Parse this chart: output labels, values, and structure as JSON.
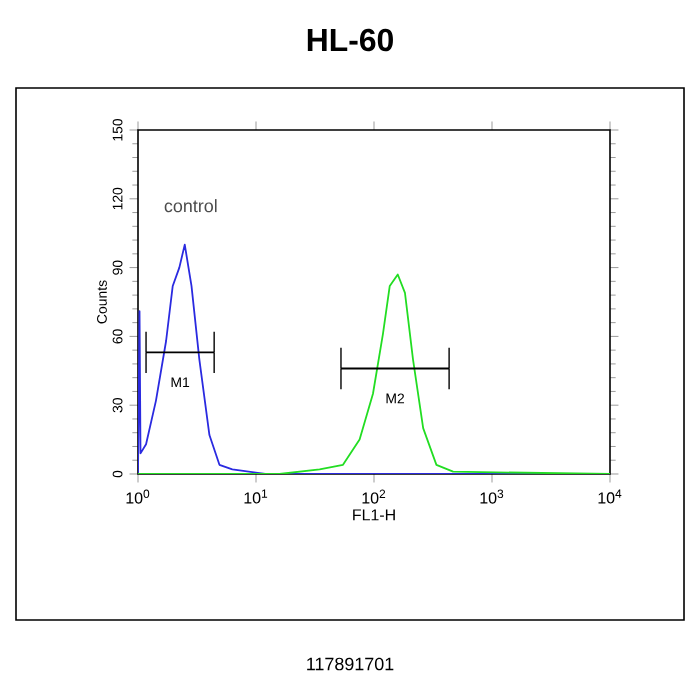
{
  "chart_data": {
    "type": "line",
    "title": "HL-60",
    "xlabel": "FL1-H",
    "ylabel": "Counts",
    "log": "x",
    "xlim": [
      1,
      10000
    ],
    "xticks": [
      {
        "value": 1,
        "label": "10$^{0}$"
      },
      {
        "value": 10,
        "label": "10$^{1}$"
      },
      {
        "value": 100,
        "label": "10$^{2}$"
      },
      {
        "value": 1000,
        "label": "10$^{3}$"
      },
      {
        "value": 10000,
        "label": "10$^{4}$"
      }
    ],
    "ylim": [
      0,
      150
    ],
    "yticks": [
      0,
      30,
      60,
      90,
      120,
      150
    ],
    "marker": "none",
    "line_style": "solid",
    "series": [
      {
        "color": "#2a2ae0",
        "x": [
          1,
          1.03,
          1.05,
          1.17,
          1.42,
          1.73,
          1.97,
          2.24,
          2.49,
          2.84,
          3.31,
          4.03,
          4.9,
          6.3,
          12,
          50,
          10000
        ],
        "values": [
          0,
          71,
          9,
          13,
          32,
          58,
          82,
          90,
          100,
          82,
          50,
          17,
          4,
          2,
          0,
          0,
          0
        ]
      },
      {
        "color": "#22dd22",
        "x": [
          1,
          15.8,
          34.6,
          54.6,
          75.5,
          98,
          119,
          136,
          159,
          183,
          214,
          261,
          338,
          468,
          10000
        ],
        "values": [
          0,
          0,
          2,
          4,
          15,
          35,
          61,
          82,
          87,
          79,
          50,
          20,
          4,
          1,
          0
        ]
      },
      {
        "name": "M1",
        "color": "#000000",
        "x": [
          1.17,
          4.42
        ],
        "values": [
          53,
          53
        ],
        "errors": [
          9,
          9
        ]
      },
      {
        "name": "M2",
        "color": "#000000",
        "x": [
          52.5,
          433
        ],
        "values": [
          46,
          46
        ],
        "errors": [
          9,
          9
        ]
      }
    ],
    "annotations": [
      "control",
      "117891701"
    ]
  }
}
